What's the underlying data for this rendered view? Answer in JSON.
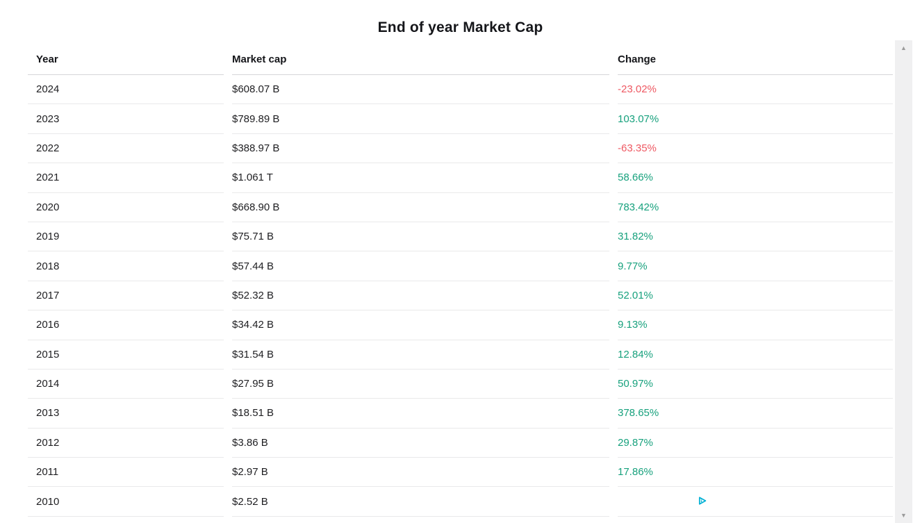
{
  "page": {
    "title": "End of year Market Cap"
  },
  "table": {
    "columns": [
      "Year",
      "Market cap",
      "Change"
    ],
    "rows": [
      {
        "year": "2024",
        "market_cap": "$608.07 B",
        "change": "-23.02%",
        "direction": "down"
      },
      {
        "year": "2023",
        "market_cap": "$789.89 B",
        "change": "103.07%",
        "direction": "up"
      },
      {
        "year": "2022",
        "market_cap": "$388.97 B",
        "change": "-63.35%",
        "direction": "down"
      },
      {
        "year": "2021",
        "market_cap": "$1.061 T",
        "change": "58.66%",
        "direction": "up"
      },
      {
        "year": "2020",
        "market_cap": "$668.90 B",
        "change": "783.42%",
        "direction": "up"
      },
      {
        "year": "2019",
        "market_cap": "$75.71 B",
        "change": "31.82%",
        "direction": "up"
      },
      {
        "year": "2018",
        "market_cap": "$57.44 B",
        "change": "9.77%",
        "direction": "up"
      },
      {
        "year": "2017",
        "market_cap": "$52.32 B",
        "change": "52.01%",
        "direction": "up"
      },
      {
        "year": "2016",
        "market_cap": "$34.42 B",
        "change": "9.13%",
        "direction": "up"
      },
      {
        "year": "2015",
        "market_cap": "$31.54 B",
        "change": "12.84%",
        "direction": "up"
      },
      {
        "year": "2014",
        "market_cap": "$27.95 B",
        "change": "50.97%",
        "direction": "up"
      },
      {
        "year": "2013",
        "market_cap": "$18.51 B",
        "change": "378.65%",
        "direction": "up"
      },
      {
        "year": "2012",
        "market_cap": "$3.86 B",
        "change": "29.87%",
        "direction": "up"
      },
      {
        "year": "2011",
        "market_cap": "$2.97 B",
        "change": "17.86%",
        "direction": "up"
      },
      {
        "year": "2010",
        "market_cap": "$2.52 B",
        "change": "",
        "direction": "none"
      }
    ]
  },
  "colors": {
    "positive_change": "#17a17d",
    "negative_change": "#ee5862",
    "adchoices_blue": "#00b0d4",
    "scrollbar_track": "#f0f0f1"
  },
  "icons": {
    "adchoices": "adchoices-triangle-icon",
    "scroll_up_glyph": "▲",
    "scroll_down_glyph": "▼"
  }
}
